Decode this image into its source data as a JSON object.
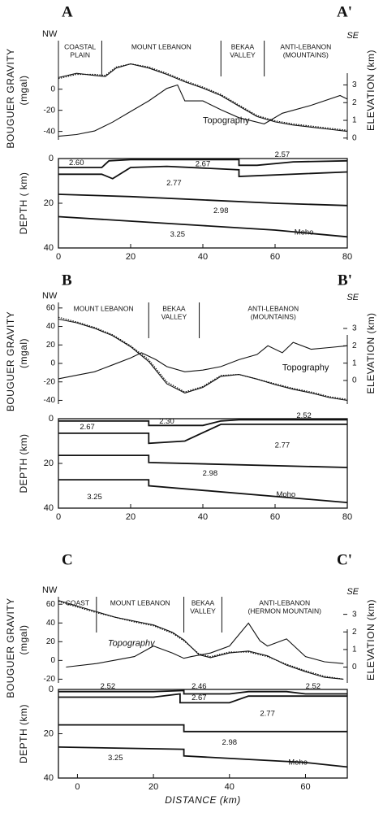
{
  "chart_data": [
    {
      "type": "line",
      "title": "A",
      "end_label": "A'",
      "start_direction": "NW",
      "end_direction": "SE",
      "y_label": "BOUGUER GRAVITY",
      "y_unit": "(mgal)",
      "y2_label": "ELEVATION (km)",
      "xlim": [
        0,
        80
      ],
      "ylim": [
        -48,
        46
      ],
      "yticks": [
        -40,
        -20,
        0
      ],
      "y2lim": [
        -0.1,
        5.5
      ],
      "y2ticks": [
        0,
        1,
        2,
        3
      ],
      "dividers": [
        12,
        45,
        57
      ],
      "regions": [
        [
          "COASTAL",
          "PLAIN"
        ],
        [
          "MOUNT LEBANON"
        ],
        [
          "BEKAA",
          "VALLEY"
        ],
        [
          "ANTI-LEBANON",
          "(MOUNTAINS)"
        ]
      ],
      "series": [
        {
          "color": "#111",
          "x": [
            0,
            5,
            10,
            13,
            16,
            20,
            25,
            30,
            35,
            40,
            45,
            50,
            55,
            60,
            65,
            70,
            75,
            80
          ],
          "values": [
            11,
            15,
            13,
            12,
            20,
            24,
            20,
            14,
            7,
            1,
            -6,
            -16,
            -26,
            -31,
            -34,
            -36,
            -38,
            -40
          ]
        },
        {
          "color": "#111",
          "dash": true,
          "x": [
            0,
            5,
            10,
            13,
            16,
            20,
            25,
            30,
            35,
            40,
            45,
            50,
            55,
            60,
            65,
            70,
            75,
            80
          ],
          "values": [
            10,
            14,
            14,
            13,
            21,
            24,
            21,
            15,
            8,
            2,
            -5,
            -15,
            -25,
            -30,
            -33,
            -35,
            -37,
            -39
          ]
        },
        {
          "name": "Topography",
          "axis": "y2",
          "color": "#111",
          "x": [
            0,
            5,
            10,
            15,
            20,
            25,
            30,
            33,
            35,
            40,
            45,
            50,
            57,
            62,
            70,
            78,
            80
          ],
          "values": [
            0.1,
            0.2,
            0.4,
            0.9,
            1.5,
            2.1,
            2.8,
            3.0,
            2.1,
            2.1,
            1.6,
            1.15,
            0.8,
            1.4,
            1.85,
            2.4,
            2.2
          ]
        }
      ]
    },
    {
      "type": "line",
      "y_label": "DEPTH ( km)",
      "xlim": [
        0,
        80
      ],
      "xticks": [
        0,
        20,
        40,
        60,
        80
      ],
      "ylim": [
        0,
        40
      ],
      "yticks": [
        0,
        20,
        40
      ],
      "y_inverted": true,
      "series": [
        {
          "color": "#111",
          "x": [
            0,
            12,
            14,
            20,
            40,
            50,
            50,
            55,
            65,
            80
          ],
          "values": [
            4,
            4,
            1,
            0.5,
            0.5,
            0.5,
            3,
            3,
            1.5,
            1
          ]
        },
        {
          "color": "#111",
          "x": [
            0,
            12,
            15,
            20,
            30,
            50,
            50,
            80
          ],
          "values": [
            7,
            7,
            9,
            4,
            3.5,
            5,
            8,
            6
          ]
        },
        {
          "color": "#111",
          "x": [
            0,
            20,
            40,
            60,
            80
          ],
          "values": [
            16,
            17,
            18.5,
            20,
            21
          ]
        },
        {
          "color": "#111",
          "x": [
            0,
            20,
            40,
            60,
            80
          ],
          "values": [
            26,
            28,
            30,
            32,
            35
          ]
        }
      ],
      "annotations": [
        "2.60",
        "2.57",
        "2.67",
        "2.77",
        "2.98",
        "3.25",
        "Moho"
      ]
    },
    {
      "type": "line",
      "title": "B",
      "end_label": "B'",
      "start_direction": "NW",
      "end_direction": "SE",
      "y_label": "BOUGUER GRAVITY",
      "y_unit": "(mgal)",
      "y2_label": "ELEVATION (km)",
      "xlim": [
        0,
        80
      ],
      "ylim": [
        -44,
        66
      ],
      "yticks": [
        -40,
        -20,
        0,
        20,
        40,
        60
      ],
      "y2lim": [
        -1.36,
        4.5
      ],
      "y2ticks": [
        0,
        1,
        2,
        3
      ],
      "dividers": [
        25,
        39
      ],
      "regions": [
        [
          "MOUNT LEBANON"
        ],
        [
          "BEKAA",
          "VALLEY"
        ],
        [
          "ANTI-LEBANON",
          "(MOUNTAINS)"
        ]
      ],
      "series": [
        {
          "color": "#111",
          "x": [
            0,
            5,
            10,
            15,
            20,
            25,
            30,
            35,
            40,
            45,
            50,
            55,
            60,
            65,
            70,
            75,
            80
          ],
          "values": [
            48,
            44,
            38,
            30,
            18,
            2,
            -22,
            -32,
            -26,
            -14,
            -12,
            -17,
            -23,
            -28,
            -32,
            -37,
            -40
          ]
        },
        {
          "color": "#111",
          "dash": true,
          "x": [
            0,
            5,
            10,
            15,
            20,
            25,
            30,
            35,
            40,
            45,
            50,
            55,
            60,
            65,
            70,
            75,
            80
          ],
          "values": [
            50,
            45,
            39,
            31,
            19,
            4,
            -20,
            -31,
            -25,
            -13,
            -12,
            -17,
            -22,
            -27,
            -31,
            -36,
            -39
          ]
        },
        {
          "name": "Topography",
          "axis": "y2",
          "color": "#111",
          "x": [
            0,
            5,
            10,
            15,
            20,
            23,
            27,
            30,
            35,
            40,
            45,
            50,
            55,
            58,
            62,
            65,
            70,
            75,
            80
          ],
          "values": [
            0.1,
            0.3,
            0.5,
            0.9,
            1.3,
            1.6,
            1.2,
            0.8,
            0.5,
            0.6,
            0.8,
            1.2,
            1.5,
            2.0,
            1.6,
            2.2,
            1.8,
            1.9,
            2.0
          ]
        }
      ]
    },
    {
      "type": "line",
      "y_label": "DEPTH (km)",
      "xlim": [
        0,
        80
      ],
      "xticks": [
        0,
        20,
        40,
        60,
        80
      ],
      "ylim": [
        0,
        40
      ],
      "yticks": [
        0,
        20,
        40
      ],
      "y_inverted": true,
      "series": [
        {
          "color": "#111",
          "x": [
            0,
            25,
            25,
            40,
            45,
            50,
            80
          ],
          "values": [
            1,
            1,
            3,
            3,
            1,
            0.5,
            0.5
          ]
        },
        {
          "color": "#111",
          "x": [
            0,
            25,
            25,
            35,
            45,
            50,
            80
          ],
          "values": [
            6.5,
            6.5,
            11,
            10,
            2.5,
            2.5,
            2.5
          ]
        },
        {
          "color": "#111",
          "x": [
            0,
            25,
            25,
            80
          ],
          "values": [
            16.4,
            16.4,
            19.6,
            21.8
          ]
        },
        {
          "color": "#111",
          "x": [
            0,
            25,
            25,
            80
          ],
          "values": [
            27.3,
            27.3,
            30,
            37.5
          ]
        }
      ],
      "annotations": [
        "2.30",
        "2.52",
        "2.67",
        "2.77",
        "2.98",
        "3.25",
        "Moho"
      ]
    },
    {
      "type": "line",
      "title": "C",
      "end_label": "C'",
      "start_direction": "NW",
      "end_direction": "SE",
      "y_label": "BOUGUER GRAVITY",
      "y_unit": "(mgal)",
      "y2_label": "ELEVATION (km)",
      "xlim": [
        -5,
        71
      ],
      "ylim": [
        -24,
        68
      ],
      "yticks": [
        -20,
        0,
        20,
        40,
        60
      ],
      "y2lim": [
        -0.9,
        4.0
      ],
      "y2ticks": [
        0,
        1,
        2,
        3
      ],
      "dividers": [
        5,
        28,
        38
      ],
      "regions": [
        [
          "COAST"
        ],
        [
          "MOUNT  LEBANON"
        ],
        [
          "BEKAA",
          "VALLEY"
        ],
        [
          "ANTI-LEBANON",
          "(HERMON MOUNTAIN)"
        ]
      ],
      "series": [
        {
          "color": "#111",
          "x": [
            -5,
            0,
            5,
            10,
            15,
            20,
            25,
            28,
            32,
            35,
            40,
            45,
            50,
            55,
            60,
            65,
            70
          ],
          "values": [
            64,
            58,
            52,
            46,
            42,
            38,
            30,
            22,
            6,
            3,
            8,
            10,
            5,
            -5,
            -12,
            -18,
            -20
          ]
        },
        {
          "color": "#111",
          "dash": true,
          "x": [
            -5,
            0,
            5,
            10,
            15,
            20,
            25,
            28,
            32,
            35,
            40,
            45,
            50,
            55,
            60,
            65,
            70
          ],
          "values": [
            63,
            57,
            51,
            46,
            41,
            37,
            29,
            21,
            7,
            4,
            9,
            9,
            4,
            -4,
            -11,
            -17,
            -20
          ]
        },
        {
          "name": "Topography",
          "axis": "y2",
          "color": "#111",
          "x": [
            -3,
            5,
            10,
            15,
            20,
            25,
            28,
            30,
            35,
            40,
            45,
            48,
            50,
            55,
            60,
            65,
            70
          ],
          "values": [
            0.0,
            0.2,
            0.4,
            0.6,
            1.2,
            0.8,
            0.5,
            0.6,
            0.8,
            1.2,
            2.5,
            1.5,
            1.2,
            1.6,
            0.6,
            0.3,
            0.2
          ]
        }
      ]
    },
    {
      "type": "line",
      "y_label": "DEPTH (km)",
      "x_label": "DISTANCE (km)",
      "xlim": [
        -5,
        71
      ],
      "xticks": [
        0,
        20,
        40,
        60
      ],
      "ylim": [
        0,
        40
      ],
      "yticks": [
        0,
        20,
        40
      ],
      "y_inverted": true,
      "series": [
        {
          "color": "#111",
          "x": [
            -5,
            20,
            28,
            28,
            40,
            45,
            55,
            60,
            71
          ],
          "values": [
            1,
            1,
            0.5,
            2,
            2,
            1,
            1,
            2,
            2
          ]
        },
        {
          "color": "#111",
          "x": [
            -5,
            20,
            27,
            27,
            40,
            45,
            71
          ],
          "values": [
            3.5,
            3.5,
            2,
            6,
            6,
            3,
            3
          ]
        },
        {
          "color": "#111",
          "x": [
            -5,
            28,
            28,
            71
          ],
          "values": [
            16,
            16,
            19,
            19
          ]
        },
        {
          "color": "#111",
          "x": [
            -5,
            28,
            28,
            60,
            71
          ],
          "values": [
            26,
            27,
            30,
            33,
            35
          ]
        }
      ],
      "annotations": [
        "2.52",
        "2.46",
        "2.52",
        "2.67",
        "2.77",
        "2.98",
        "3.25",
        "Moho"
      ]
    }
  ]
}
